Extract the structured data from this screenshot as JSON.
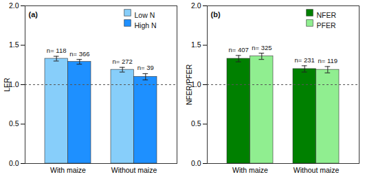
{
  "chart_data": [
    {
      "type": "bar",
      "title": "(a)",
      "y_label": "LER",
      "categories": [
        "With maize",
        "Without maize"
      ],
      "series": [
        {
          "name": "Low N",
          "color": "#87CEFA",
          "values": [
            1.33,
            1.19
          ],
          "errors": [
            0.03,
            0.03
          ],
          "n_labels": [
            "n= 118",
            "n= 272"
          ]
        },
        {
          "name": "High N",
          "color": "#1E90FF",
          "values": [
            1.29,
            1.1
          ],
          "errors": [
            0.03,
            0.04
          ],
          "n_labels": [
            "n= 366",
            "n= 39"
          ]
        }
      ],
      "ylim": [
        0,
        2
      ],
      "yticks": [
        {
          "value": 0,
          "label": "0.0"
        },
        {
          "value": 0.5,
          "label": "0.5"
        },
        {
          "value": 1,
          "label": "1.0"
        },
        {
          "value": 1.5,
          "label": "1.5"
        },
        {
          "value": 2,
          "label": "2.0"
        }
      ],
      "reference_line": 1,
      "legend": "top-right"
    },
    {
      "type": "bar",
      "title": "(b)",
      "y_label": "NFER/PFER",
      "categories": [
        "With maize",
        "Without maize"
      ],
      "series": [
        {
          "name": "NFER",
          "color": "#008000",
          "values": [
            1.33,
            1.2
          ],
          "errors": [
            0.04,
            0.04
          ],
          "n_labels": [
            "n= 407",
            "n= 231"
          ]
        },
        {
          "name": "PFER",
          "color": "#90EE90",
          "values": [
            1.36,
            1.19
          ],
          "errors": [
            0.04,
            0.04
          ],
          "n_labels": [
            "n= 325",
            "n= 119"
          ]
        }
      ],
      "ylim": [
        0,
        2
      ],
      "yticks": [
        {
          "value": 0,
          "label": "0.0"
        },
        {
          "value": 0.5,
          "label": "0.5"
        },
        {
          "value": 1,
          "label": "1.0"
        },
        {
          "value": 1.5,
          "label": "1.5"
        },
        {
          "value": 2,
          "label": "2.0"
        }
      ],
      "reference_line": 1,
      "legend": "top-right"
    }
  ]
}
